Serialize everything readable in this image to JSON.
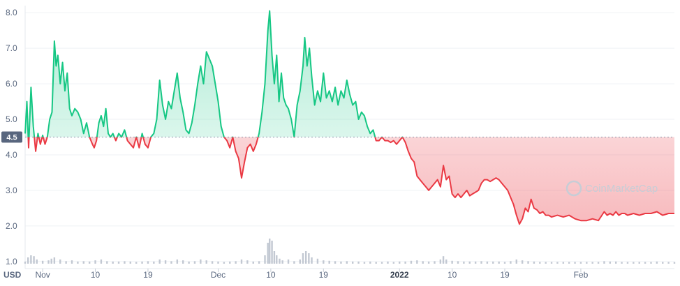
{
  "chart_data": {
    "type": "area",
    "currency_label": "USD",
    "watermark": "CoinMarketCap",
    "reference_value": 4.5,
    "reference_label": "4.5",
    "ylim": [
      0.8,
      8.2
    ],
    "y_ticks": [
      "1.0",
      "2.0",
      "3.0",
      "4.0",
      "5.0",
      "6.0",
      "7.0",
      "8.0"
    ],
    "x_range_days": [
      0,
      111
    ],
    "x_ticks": [
      {
        "day": 3,
        "label": "Nov",
        "bold": false
      },
      {
        "day": 12,
        "label": "10",
        "bold": false
      },
      {
        "day": 21,
        "label": "19",
        "bold": false
      },
      {
        "day": 33,
        "label": "Dec",
        "bold": false
      },
      {
        "day": 42,
        "label": "10",
        "bold": false
      },
      {
        "day": 51,
        "label": "19",
        "bold": false
      },
      {
        "day": 64,
        "label": "2022",
        "bold": true
      },
      {
        "day": 73,
        "label": "10",
        "bold": false
      },
      {
        "day": 82,
        "label": "19",
        "bold": false
      },
      {
        "day": 95,
        "label": "Feb",
        "bold": false
      }
    ],
    "colors": {
      "up": "#16c784",
      "down": "#ea3943",
      "volume": "#c2c8d2"
    },
    "price": [
      [
        0,
        4.6
      ],
      [
        0.3,
        5.5
      ],
      [
        0.6,
        4.2
      ],
      [
        1,
        5.9
      ],
      [
        1.4,
        4.8
      ],
      [
        1.8,
        4.1
      ],
      [
        2.2,
        4.6
      ],
      [
        2.6,
        4.3
      ],
      [
        3,
        4.55
      ],
      [
        3.4,
        4.3
      ],
      [
        3.8,
        4.5
      ],
      [
        4.2,
        5.0
      ],
      [
        4.6,
        5.2
      ],
      [
        5,
        7.2
      ],
      [
        5.3,
        6.5
      ],
      [
        5.6,
        6.8
      ],
      [
        6,
        6.0
      ],
      [
        6.4,
        6.6
      ],
      [
        6.8,
        5.8
      ],
      [
        7.2,
        6.3
      ],
      [
        7.6,
        5.3
      ],
      [
        8,
        5.1
      ],
      [
        8.5,
        5.3
      ],
      [
        9,
        5.2
      ],
      [
        9.5,
        5.0
      ],
      [
        10,
        4.6
      ],
      [
        10.5,
        4.9
      ],
      [
        11,
        4.5
      ],
      [
        11.5,
        4.3
      ],
      [
        11.8,
        4.2
      ],
      [
        12.2,
        4.4
      ],
      [
        12.6,
        4.9
      ],
      [
        13,
        5.1
      ],
      [
        13.4,
        4.8
      ],
      [
        13.8,
        5.3
      ],
      [
        14.2,
        4.6
      ],
      [
        14.6,
        4.5
      ],
      [
        15,
        4.6
      ],
      [
        15.5,
        4.4
      ],
      [
        16,
        4.6
      ],
      [
        16.5,
        4.5
      ],
      [
        17,
        4.7
      ],
      [
        17.5,
        4.4
      ],
      [
        18,
        4.3
      ],
      [
        18.5,
        4.2
      ],
      [
        19,
        4.5
      ],
      [
        19.5,
        4.2
      ],
      [
        20,
        4.6
      ],
      [
        20.5,
        4.3
      ],
      [
        21,
        4.2
      ],
      [
        21.5,
        4.5
      ],
      [
        22,
        4.6
      ],
      [
        22.5,
        5.0
      ],
      [
        23,
        6.1
      ],
      [
        23.5,
        5.4
      ],
      [
        24,
        5.0
      ],
      [
        24.5,
        5.5
      ],
      [
        25,
        5.3
      ],
      [
        25.5,
        5.8
      ],
      [
        26,
        6.3
      ],
      [
        26.5,
        5.6
      ],
      [
        27,
        5.2
      ],
      [
        27.5,
        4.7
      ],
      [
        28,
        4.6
      ],
      [
        28.5,
        4.9
      ],
      [
        29,
        5.4
      ],
      [
        29.5,
        6.0
      ],
      [
        30,
        6.5
      ],
      [
        30.5,
        6.0
      ],
      [
        31,
        6.9
      ],
      [
        31.5,
        6.7
      ],
      [
        32,
        6.5
      ],
      [
        32.5,
        6.0
      ],
      [
        33,
        5.5
      ],
      [
        33.5,
        4.8
      ],
      [
        34,
        4.5
      ],
      [
        34.5,
        4.4
      ],
      [
        35,
        4.2
      ],
      [
        35.5,
        4.5
      ],
      [
        36,
        4.1
      ],
      [
        36.5,
        3.9
      ],
      [
        37,
        3.35
      ],
      [
        37.5,
        3.8
      ],
      [
        38,
        4.2
      ],
      [
        38.5,
        4.3
      ],
      [
        39,
        4.1
      ],
      [
        39.5,
        4.3
      ],
      [
        40,
        4.6
      ],
      [
        40.5,
        5.2
      ],
      [
        41,
        6.0
      ],
      [
        41.5,
        7.5
      ],
      [
        41.8,
        8.05
      ],
      [
        42.2,
        6.8
      ],
      [
        42.6,
        6.0
      ],
      [
        43,
        6.8
      ],
      [
        43.4,
        5.5
      ],
      [
        43.8,
        6.3
      ],
      [
        44.2,
        5.6
      ],
      [
        44.6,
        5.4
      ],
      [
        45,
        5.3
      ],
      [
        45.5,
        5.0
      ],
      [
        46,
        4.5
      ],
      [
        46.5,
        5.4
      ],
      [
        47,
        5.8
      ],
      [
        47.5,
        6.5
      ],
      [
        47.8,
        7.3
      ],
      [
        48.2,
        6.5
      ],
      [
        48.6,
        7.0
      ],
      [
        49,
        6.2
      ],
      [
        49.5,
        5.4
      ],
      [
        50,
        5.8
      ],
      [
        50.5,
        5.5
      ],
      [
        51,
        6.3
      ],
      [
        51.5,
        5.6
      ],
      [
        52,
        5.8
      ],
      [
        52.5,
        5.5
      ],
      [
        53,
        5.9
      ],
      [
        53.5,
        5.4
      ],
      [
        54,
        5.8
      ],
      [
        54.5,
        5.6
      ],
      [
        55,
        6.1
      ],
      [
        55.5,
        5.7
      ],
      [
        56,
        5.4
      ],
      [
        56.5,
        5.5
      ],
      [
        57,
        5.0
      ],
      [
        57.5,
        5.2
      ],
      [
        58,
        5.1
      ],
      [
        58.5,
        4.8
      ],
      [
        59,
        4.6
      ],
      [
        59.5,
        4.7
      ],
      [
        60,
        4.4
      ],
      [
        60.5,
        4.4
      ],
      [
        61,
        4.5
      ],
      [
        61.5,
        4.4
      ],
      [
        62,
        4.4
      ],
      [
        62.5,
        4.35
      ],
      [
        63,
        4.4
      ],
      [
        63.5,
        4.3
      ],
      [
        64,
        4.4
      ],
      [
        64.5,
        4.5
      ],
      [
        65,
        4.35
      ],
      [
        65.5,
        4.1
      ],
      [
        66,
        3.9
      ],
      [
        66.5,
        3.8
      ],
      [
        67,
        3.4
      ],
      [
        67.5,
        3.3
      ],
      [
        68,
        3.2
      ],
      [
        68.5,
        3.1
      ],
      [
        69,
        3.0
      ],
      [
        69.5,
        3.1
      ],
      [
        70,
        3.2
      ],
      [
        70.5,
        3.3
      ],
      [
        71,
        3.1
      ],
      [
        71.5,
        3.7
      ],
      [
        72,
        3.3
      ],
      [
        72.5,
        3.4
      ],
      [
        73,
        2.9
      ],
      [
        73.5,
        2.8
      ],
      [
        74,
        2.9
      ],
      [
        74.5,
        2.8
      ],
      [
        75,
        2.9
      ],
      [
        75.5,
        3.0
      ],
      [
        76,
        2.85
      ],
      [
        76.5,
        2.9
      ],
      [
        77,
        2.95
      ],
      [
        77.5,
        3.0
      ],
      [
        78,
        3.2
      ],
      [
        78.5,
        3.3
      ],
      [
        79,
        3.3
      ],
      [
        79.5,
        3.25
      ],
      [
        80,
        3.3
      ],
      [
        80.5,
        3.35
      ],
      [
        81,
        3.3
      ],
      [
        81.5,
        3.2
      ],
      [
        82,
        3.1
      ],
      [
        82.5,
        3.0
      ],
      [
        83,
        2.8
      ],
      [
        83.5,
        2.6
      ],
      [
        84,
        2.3
      ],
      [
        84.5,
        2.05
      ],
      [
        85,
        2.2
      ],
      [
        85.5,
        2.5
      ],
      [
        86,
        2.4
      ],
      [
        86.5,
        2.75
      ],
      [
        87,
        2.5
      ],
      [
        87.5,
        2.45
      ],
      [
        88,
        2.35
      ],
      [
        88.5,
        2.4
      ],
      [
        89,
        2.3
      ],
      [
        89.5,
        2.3
      ],
      [
        90,
        2.25
      ],
      [
        91,
        2.3
      ],
      [
        92,
        2.25
      ],
      [
        93,
        2.3
      ],
      [
        94,
        2.2
      ],
      [
        95,
        2.15
      ],
      [
        96,
        2.15
      ],
      [
        97,
        2.2
      ],
      [
        98,
        2.15
      ],
      [
        99,
        2.4
      ],
      [
        99.5,
        2.3
      ],
      [
        100,
        2.35
      ],
      [
        100.5,
        2.3
      ],
      [
        101,
        2.4
      ],
      [
        101.5,
        2.3
      ],
      [
        102,
        2.35
      ],
      [
        102.5,
        2.35
      ],
      [
        103,
        2.3
      ],
      [
        104,
        2.35
      ],
      [
        105,
        2.3
      ],
      [
        106,
        2.35
      ],
      [
        107,
        2.35
      ],
      [
        108,
        2.4
      ],
      [
        109,
        2.3
      ],
      [
        110,
        2.35
      ],
      [
        111,
        2.35
      ]
    ],
    "volume": [
      [
        0,
        0.05
      ],
      [
        0.5,
        0.15
      ],
      [
        1,
        0.2
      ],
      [
        1.5,
        0.18
      ],
      [
        2,
        0.1
      ],
      [
        3,
        0.07
      ],
      [
        4,
        0.08
      ],
      [
        4.5,
        0.12
      ],
      [
        5,
        0.15
      ],
      [
        6,
        0.1
      ],
      [
        7,
        0.06
      ],
      [
        8,
        0.08
      ],
      [
        9,
        0.05
      ],
      [
        10,
        0.06
      ],
      [
        11,
        0.05
      ],
      [
        12,
        0.08
      ],
      [
        13,
        0.1
      ],
      [
        14,
        0.06
      ],
      [
        15,
        0.05
      ],
      [
        16,
        0.05
      ],
      [
        17,
        0.06
      ],
      [
        18,
        0.05
      ],
      [
        19,
        0.04
      ],
      [
        20,
        0.05
      ],
      [
        21,
        0.06
      ],
      [
        22,
        0.05
      ],
      [
        23,
        0.1
      ],
      [
        24,
        0.08
      ],
      [
        25,
        0.06
      ],
      [
        26,
        0.1
      ],
      [
        27,
        0.08
      ],
      [
        28,
        0.05
      ],
      [
        29,
        0.06
      ],
      [
        30,
        0.1
      ],
      [
        31,
        0.08
      ],
      [
        32,
        0.06
      ],
      [
        33,
        0.05
      ],
      [
        34,
        0.04
      ],
      [
        35,
        0.05
      ],
      [
        36,
        0.06
      ],
      [
        37,
        0.1
      ],
      [
        38,
        0.08
      ],
      [
        39,
        0.05
      ],
      [
        40,
        0.06
      ],
      [
        41,
        0.2
      ],
      [
        41.5,
        0.5
      ],
      [
        41.8,
        0.6
      ],
      [
        42.2,
        0.55
      ],
      [
        42.6,
        0.3
      ],
      [
        43,
        0.2
      ],
      [
        43.5,
        0.12
      ],
      [
        44,
        0.08
      ],
      [
        45,
        0.1
      ],
      [
        46,
        0.06
      ],
      [
        47,
        0.1
      ],
      [
        47.5,
        0.25
      ],
      [
        48,
        0.3
      ],
      [
        48.5,
        0.25
      ],
      [
        49,
        0.15
      ],
      [
        50,
        0.12
      ],
      [
        51,
        0.08
      ],
      [
        52,
        0.07
      ],
      [
        53,
        0.06
      ],
      [
        54,
        0.05
      ],
      [
        55,
        0.06
      ],
      [
        56,
        0.05
      ],
      [
        57,
        0.05
      ],
      [
        58,
        0.04
      ],
      [
        59,
        0.05
      ],
      [
        60,
        0.04
      ],
      [
        61,
        0.04
      ],
      [
        62,
        0.05
      ],
      [
        63,
        0.04
      ],
      [
        64,
        0.05
      ],
      [
        65,
        0.05
      ],
      [
        66,
        0.07
      ],
      [
        67,
        0.08
      ],
      [
        68,
        0.06
      ],
      [
        69,
        0.05
      ],
      [
        70,
        0.06
      ],
      [
        71,
        0.1
      ],
      [
        71.5,
        0.18
      ],
      [
        72,
        0.1
      ],
      [
        73,
        0.07
      ],
      [
        74,
        0.06
      ],
      [
        75,
        0.05
      ],
      [
        76,
        0.05
      ],
      [
        77,
        0.05
      ],
      [
        78,
        0.06
      ],
      [
        79,
        0.05
      ],
      [
        80,
        0.05
      ],
      [
        81,
        0.05
      ],
      [
        82,
        0.04
      ],
      [
        83,
        0.06
      ],
      [
        84,
        0.1
      ],
      [
        85,
        0.08
      ],
      [
        86,
        0.06
      ],
      [
        87,
        0.05
      ],
      [
        88,
        0.04
      ],
      [
        89,
        0.04
      ],
      [
        90,
        0.04
      ],
      [
        91,
        0.04
      ],
      [
        92,
        0.04
      ],
      [
        93,
        0.04
      ],
      [
        94,
        0.04
      ],
      [
        95,
        0.04
      ],
      [
        96,
        0.04
      ],
      [
        97,
        0.04
      ],
      [
        98,
        0.04
      ],
      [
        99,
        0.06
      ],
      [
        100,
        0.05
      ],
      [
        101,
        0.05
      ],
      [
        102,
        0.04
      ],
      [
        103,
        0.04
      ],
      [
        104,
        0.04
      ],
      [
        105,
        0.04
      ],
      [
        106,
        0.04
      ],
      [
        107,
        0.04
      ],
      [
        108,
        0.05
      ],
      [
        109,
        0.04
      ],
      [
        110,
        0.04
      ],
      [
        111,
        0.04
      ]
    ],
    "volume_max": 1.0,
    "grid": true
  }
}
